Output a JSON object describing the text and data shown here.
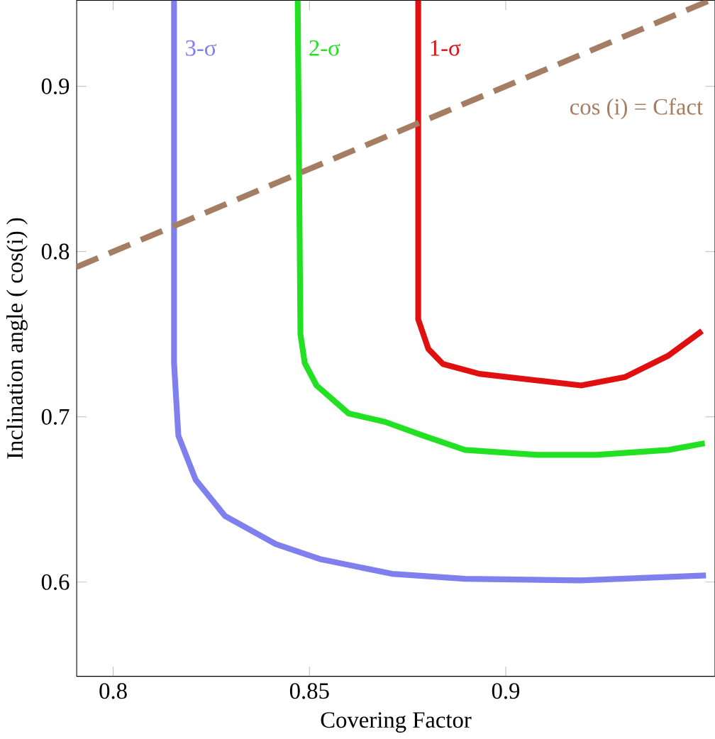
{
  "chart_data": {
    "type": "line",
    "xlabel": "Covering Factor",
    "ylabel": "Inclination angle ( cos(i) )",
    "xlim": [
      0.7907,
      0.9533
    ],
    "ylim": [
      0.543,
      0.952
    ],
    "xticks": [
      0.8,
      0.85,
      0.9
    ],
    "yticks": [
      0.6,
      0.7,
      0.8,
      0.9
    ],
    "grid": false,
    "legend": false,
    "marker": "none",
    "series": [
      {
        "name": "3-σ",
        "color": "#7f7fee",
        "x": [
          0.8155,
          0.8155,
          0.8166,
          0.821,
          0.8285,
          0.8414,
          0.8526,
          0.871,
          0.8896,
          0.919,
          0.951
        ],
        "values": [
          0.952,
          0.7325,
          0.6886,
          0.662,
          0.64,
          0.623,
          0.614,
          0.605,
          0.602,
          0.601,
          0.604
        ]
      },
      {
        "name": "2-σ",
        "color": "#22e022",
        "x": [
          0.847,
          0.8477,
          0.8488,
          0.8518,
          0.86,
          0.8692,
          0.8785,
          0.8896,
          0.908,
          0.923,
          0.9415,
          0.9507
        ],
        "values": [
          0.952,
          0.75,
          0.7325,
          0.719,
          0.702,
          0.697,
          0.689,
          0.68,
          0.677,
          0.677,
          0.68,
          0.684
        ]
      },
      {
        "name": "1-σ",
        "color": "#e01010",
        "x": [
          0.8777,
          0.8777,
          0.8803,
          0.884,
          0.8933,
          0.9081,
          0.9192,
          0.9303,
          0.9414,
          0.95
        ],
        "values": [
          0.952,
          0.759,
          0.741,
          0.732,
          0.726,
          0.722,
          0.719,
          0.724,
          0.737,
          0.752
        ]
      },
      {
        "name": "cos (i) = Cfact",
        "color": "#a57d62",
        "line_style": "dashed",
        "x": [
          0.7907,
          0.952
        ],
        "values": [
          0.7907,
          0.952
        ]
      }
    ]
  }
}
